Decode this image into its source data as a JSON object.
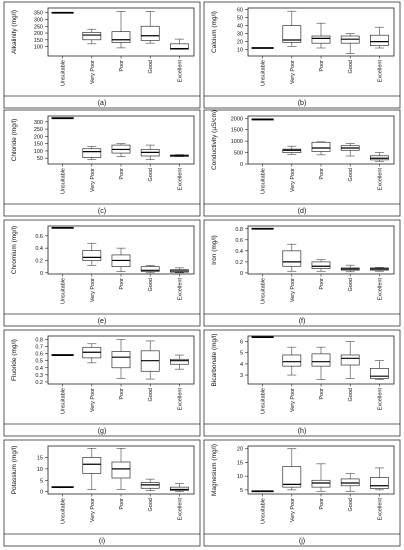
{
  "figure": {
    "categories": [
      "Unsuitable",
      "Very Poor",
      "Poor",
      "Good",
      "Excellent"
    ]
  },
  "chart_data": [
    {
      "type": "boxplot",
      "panel_label": "(a)",
      "ylabel": "Alkalinity (mg/l)",
      "ylim": [
        30,
        385
      ],
      "yticks": [
        100,
        150,
        200,
        250,
        300,
        350
      ],
      "categories": [
        "Unsuitable",
        "Very Poor",
        "Poor",
        "Good",
        "Excellent"
      ],
      "boxes": [
        {
          "category": "Unsuitable",
          "whisker_low": 350,
          "q1": 350,
          "median": 350,
          "q3": 350,
          "whisker_high": 350
        },
        {
          "category": "Very Poor",
          "whisker_low": 120,
          "q1": 150,
          "median": 185,
          "q3": 205,
          "whisker_high": 228
        },
        {
          "category": "Poor",
          "whisker_low": 90,
          "q1": 130,
          "median": 150,
          "q3": 210,
          "whisker_high": 360
        },
        {
          "category": "Good",
          "whisker_low": 125,
          "q1": 145,
          "median": 180,
          "q3": 250,
          "whisker_high": 360
        },
        {
          "category": "Excellent",
          "whisker_low": 80,
          "q1": 80,
          "median": 85,
          "q3": 120,
          "whisker_high": 155
        }
      ]
    },
    {
      "type": "boxplot",
      "panel_label": "(b)",
      "ylabel": "Calcium (mg/l)",
      "ylim": [
        2,
        62
      ],
      "yticks": [
        10,
        20,
        30,
        40,
        50,
        60
      ],
      "categories": [
        "Unsuitable",
        "Very Poor",
        "Poor",
        "Good",
        "Excellent"
      ],
      "boxes": [
        {
          "category": "Unsuitable",
          "whisker_low": 12,
          "q1": 12,
          "median": 12,
          "q3": 12,
          "whisker_high": 12
        },
        {
          "category": "Very Poor",
          "whisker_low": 14,
          "q1": 19,
          "median": 22,
          "q3": 40,
          "whisker_high": 58
        },
        {
          "category": "Poor",
          "whisker_low": 12,
          "q1": 18,
          "median": 24,
          "q3": 27,
          "whisker_high": 43
        },
        {
          "category": "Good",
          "whisker_low": 5,
          "q1": 18,
          "median": 23,
          "q3": 27,
          "whisker_high": 30
        },
        {
          "category": "Excellent",
          "whisker_low": 12,
          "q1": 15,
          "median": 20,
          "q3": 28,
          "whisker_high": 38
        }
      ]
    },
    {
      "type": "boxplot",
      "panel_label": "(c)",
      "ylabel": "Chloride (mg/l)",
      "ylim": [
        10,
        340
      ],
      "yticks": [
        50,
        100,
        150,
        200,
        250,
        300
      ],
      "categories": [
        "Unsuitable",
        "Very Poor",
        "Poor",
        "Good",
        "Excellent"
      ],
      "boxes": [
        {
          "category": "Unsuitable",
          "whisker_low": 325,
          "q1": 325,
          "median": 325,
          "q3": 325,
          "whisker_high": 325
        },
        {
          "category": "Very Poor",
          "whisker_low": 40,
          "q1": 55,
          "median": 95,
          "q3": 115,
          "whisker_high": 130
        },
        {
          "category": "Poor",
          "whisker_low": 60,
          "q1": 85,
          "median": 110,
          "q3": 140,
          "whisker_high": 150
        },
        {
          "category": "Good",
          "whisker_low": 40,
          "q1": 65,
          "median": 90,
          "q3": 110,
          "whisker_high": 140
        },
        {
          "category": "Excellent",
          "whisker_low": 60,
          "q1": 62,
          "median": 67,
          "q3": 72,
          "whisker_high": 75
        }
      ]
    },
    {
      "type": "boxplot",
      "panel_label": "(d)",
      "ylabel": "Conductivity (µS/cm)",
      "ylim": [
        0,
        2100
      ],
      "yticks": [
        0,
        500,
        1000,
        1500,
        2000
      ],
      "categories": [
        "Unsuitable",
        "Very Poor",
        "Poor",
        "Good",
        "Excellent"
      ],
      "boxes": [
        {
          "category": "Unsuitable",
          "whisker_low": 1950,
          "q1": 1950,
          "median": 1950,
          "q3": 1950,
          "whisker_high": 1950
        },
        {
          "category": "Very Poor",
          "whisker_low": 420,
          "q1": 500,
          "median": 600,
          "q3": 650,
          "whisker_high": 780
        },
        {
          "category": "Poor",
          "whisker_low": 400,
          "q1": 550,
          "median": 700,
          "q3": 950,
          "whisker_high": 970
        },
        {
          "category": "Good",
          "whisker_low": 350,
          "q1": 600,
          "median": 700,
          "q3": 800,
          "whisker_high": 900
        },
        {
          "category": "Excellent",
          "whisker_low": 120,
          "q1": 180,
          "median": 250,
          "q3": 360,
          "whisker_high": 500
        }
      ]
    },
    {
      "type": "boxplot",
      "panel_label": "(e)",
      "ylabel": "Chromium (mg/l)",
      "ylim": [
        -0.02,
        0.76
      ],
      "yticks": [
        0.0,
        0.2,
        0.4,
        0.6
      ],
      "categories": [
        "Unsuitable",
        "Very Poor",
        "Poor",
        "Good",
        "Excellent"
      ],
      "boxes": [
        {
          "category": "Unsuitable",
          "whisker_low": 0.73,
          "q1": 0.73,
          "median": 0.73,
          "q3": 0.73,
          "whisker_high": 0.73
        },
        {
          "category": "Very Poor",
          "whisker_low": 0.12,
          "q1": 0.2,
          "median": 0.25,
          "q3": 0.36,
          "whisker_high": 0.48
        },
        {
          "category": "Poor",
          "whisker_low": 0.02,
          "q1": 0.1,
          "median": 0.2,
          "q3": 0.29,
          "whisker_high": 0.4
        },
        {
          "category": "Good",
          "whisker_low": 0.0,
          "q1": 0.02,
          "median": 0.04,
          "q3": 0.1,
          "whisker_high": 0.12
        },
        {
          "category": "Excellent",
          "whisker_low": 0.0,
          "q1": 0.01,
          "median": 0.03,
          "q3": 0.05,
          "whisker_high": 0.08
        }
      ]
    },
    {
      "type": "boxplot",
      "panel_label": "(f)",
      "ylabel": "Iron (mg/l)",
      "ylim": [
        -0.02,
        0.85
      ],
      "yticks": [
        0.0,
        0.2,
        0.4,
        0.6,
        0.8
      ],
      "categories": [
        "Unsuitable",
        "Very Poor",
        "Poor",
        "Good",
        "Excellent"
      ],
      "boxes": [
        {
          "category": "Unsuitable",
          "whisker_low": 0.8,
          "q1": 0.8,
          "median": 0.8,
          "q3": 0.8,
          "whisker_high": 0.8
        },
        {
          "category": "Very Poor",
          "whisker_low": 0.03,
          "q1": 0.12,
          "median": 0.2,
          "q3": 0.4,
          "whisker_high": 0.52
        },
        {
          "category": "Poor",
          "whisker_low": 0.03,
          "q1": 0.08,
          "median": 0.12,
          "q3": 0.2,
          "whisker_high": 0.24
        },
        {
          "category": "Good",
          "whisker_low": 0.02,
          "q1": 0.05,
          "median": 0.07,
          "q3": 0.09,
          "whisker_high": 0.14
        },
        {
          "category": "Excellent",
          "whisker_low": 0.03,
          "q1": 0.05,
          "median": 0.07,
          "q3": 0.09,
          "whisker_high": 0.1
        }
      ]
    },
    {
      "type": "boxplot",
      "panel_label": "(g)",
      "ylabel": "Fluoride (mg/l)",
      "ylim": [
        0.17,
        0.85
      ],
      "yticks": [
        0.2,
        0.3,
        0.4,
        0.5,
        0.6,
        0.7,
        0.8
      ],
      "categories": [
        "Unsuitable",
        "Very Poor",
        "Poor",
        "Good",
        "Excellent"
      ],
      "boxes": [
        {
          "category": "Unsuitable",
          "whisker_low": 0.58,
          "q1": 0.58,
          "median": 0.58,
          "q3": 0.58,
          "whisker_high": 0.58
        },
        {
          "category": "Very Poor",
          "whisker_low": 0.47,
          "q1": 0.54,
          "median": 0.62,
          "q3": 0.69,
          "whisker_high": 0.74
        },
        {
          "category": "Poor",
          "whisker_low": 0.25,
          "q1": 0.4,
          "median": 0.55,
          "q3": 0.63,
          "whisker_high": 0.8
        },
        {
          "category": "Good",
          "whisker_low": 0.24,
          "q1": 0.35,
          "median": 0.5,
          "q3": 0.64,
          "whisker_high": 0.78
        },
        {
          "category": "Excellent",
          "whisker_low": 0.38,
          "q1": 0.45,
          "median": 0.5,
          "q3": 0.52,
          "whisker_high": 0.58
        }
      ]
    },
    {
      "type": "boxplot",
      "panel_label": "(h)",
      "ylabel": "Bicarbonate (mg/l)",
      "ylim": [
        2.2,
        6.5
      ],
      "yticks": [
        3,
        4,
        5,
        6
      ],
      "categories": [
        "Unsuitable",
        "Very Poor",
        "Poor",
        "Good",
        "Excellent"
      ],
      "boxes": [
        {
          "category": "Unsuitable",
          "whisker_low": 6.4,
          "q1": 6.4,
          "median": 6.4,
          "q3": 6.4,
          "whisker_high": 6.4
        },
        {
          "category": "Very Poor",
          "whisker_low": 3.0,
          "q1": 3.8,
          "median": 4.2,
          "q3": 4.8,
          "whisker_high": 5.5
        },
        {
          "category": "Poor",
          "whisker_low": 2.6,
          "q1": 3.8,
          "median": 4.2,
          "q3": 4.9,
          "whisker_high": 5.5
        },
        {
          "category": "Good",
          "whisker_low": 2.7,
          "q1": 3.9,
          "median": 4.5,
          "q3": 4.8,
          "whisker_high": 6.0
        },
        {
          "category": "Excellent",
          "whisker_low": 2.6,
          "q1": 2.7,
          "median": 2.9,
          "q3": 3.6,
          "whisker_high": 4.3
        }
      ]
    },
    {
      "type": "boxplot",
      "panel_label": "(i)",
      "ylabel": "Potassium (mg/l)",
      "ylim": [
        -1,
        20
      ],
      "yticks": [
        0,
        5,
        10,
        15
      ],
      "categories": [
        "Unsuitable",
        "Very Poor",
        "Poor",
        "Good",
        "Excellent"
      ],
      "boxes": [
        {
          "category": "Unsuitable",
          "whisker_low": 2,
          "q1": 2,
          "median": 2,
          "q3": 2,
          "whisker_high": 2
        },
        {
          "category": "Very Poor",
          "whisker_low": 1,
          "q1": 8,
          "median": 12,
          "q3": 15,
          "whisker_high": 19
        },
        {
          "category": "Poor",
          "whisker_low": 1,
          "q1": 6,
          "median": 10,
          "q3": 13,
          "whisker_high": 19
        },
        {
          "category": "Good",
          "whisker_low": 0.5,
          "q1": 1.5,
          "median": 3,
          "q3": 4,
          "whisker_high": 5.5
        },
        {
          "category": "Excellent",
          "whisker_low": 0,
          "q1": 0.5,
          "median": 1,
          "q3": 2,
          "whisker_high": 3.5
        }
      ]
    },
    {
      "type": "boxplot",
      "panel_label": "(j)",
      "ylabel": "Magnesium (mg/l)",
      "ylim": [
        3.5,
        21
      ],
      "yticks": [
        5,
        10,
        15,
        20
      ],
      "categories": [
        "Unsuitable",
        "Very Poor",
        "Poor",
        "Good",
        "Excellent"
      ],
      "boxes": [
        {
          "category": "Unsuitable",
          "whisker_low": 4.5,
          "q1": 4.5,
          "median": 4.5,
          "q3": 4.5,
          "whisker_high": 4.5
        },
        {
          "category": "Very Poor",
          "whisker_low": 5,
          "q1": 6,
          "median": 7,
          "q3": 13.5,
          "whisker_high": 20
        },
        {
          "category": "Poor",
          "whisker_low": 4.5,
          "q1": 6,
          "median": 7.5,
          "q3": 8.5,
          "whisker_high": 14.5
        },
        {
          "category": "Good",
          "whisker_low": 4.5,
          "q1": 6.5,
          "median": 7.5,
          "q3": 9,
          "whisker_high": 11
        },
        {
          "category": "Excellent",
          "whisker_low": 5,
          "q1": 5.5,
          "median": 6.5,
          "q3": 9.5,
          "whisker_high": 13
        }
      ]
    }
  ]
}
